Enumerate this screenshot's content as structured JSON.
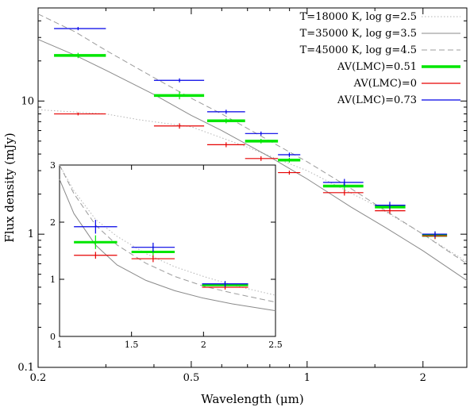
{
  "chart_data": [
    {
      "type": "scatter",
      "title": "",
      "xlabel": "Wavelength (μm)",
      "ylabel": "Flux density (mJy)",
      "x_scale": "log",
      "y_scale": "log",
      "xlim": [
        0.2,
        2.6
      ],
      "ylim": [
        0.1,
        50
      ],
      "x_ticks": [
        {
          "v": 0.2,
          "t": "0.2"
        },
        {
          "v": 0.5,
          "t": "0.5"
        },
        {
          "v": 1,
          "t": "1"
        },
        {
          "v": 2,
          "t": "2"
        }
      ],
      "y_ticks": [
        {
          "v": 0.1,
          "t": "0.1"
        },
        {
          "v": 1,
          "t": "1"
        },
        {
          "v": 10,
          "t": "10"
        }
      ],
      "grid": false,
      "legend_position": "top-right",
      "models": [
        {
          "name": "T=18000 K, log g=2.5",
          "style": "dotted",
          "color": "#b5b5b5",
          "x": [
            0.2,
            0.3,
            0.37,
            0.5,
            0.7,
            1.0,
            1.5,
            2.0,
            2.6
          ],
          "y": [
            8.6,
            8.0,
            7.2,
            6.4,
            4.5,
            3.0,
            1.65,
            1.0,
            0.62
          ]
        },
        {
          "name": "T=35000 K, log g=3.5",
          "style": "solid",
          "color": "#8a8a8a",
          "x": [
            0.2,
            0.25,
            0.3,
            0.4,
            0.5,
            0.6,
            0.8,
            1.0,
            1.3,
            1.6,
            2.0,
            2.6
          ],
          "y": [
            29,
            22,
            17,
            11.2,
            7.8,
            6.0,
            3.8,
            2.6,
            1.6,
            1.12,
            0.75,
            0.45
          ]
        },
        {
          "name": "T=45000 K, log g=4.5",
          "style": "dashed",
          "color": "#9c9c9c",
          "x": [
            0.2,
            0.25,
            0.3,
            0.4,
            0.5,
            0.6,
            0.8,
            1.0,
            1.3,
            1.6,
            2.0,
            2.6
          ],
          "y": [
            45,
            33,
            24,
            15.0,
            10.5,
            8.0,
            5.0,
            3.5,
            2.2,
            1.5,
            1.0,
            0.6
          ]
        }
      ],
      "series": [
        {
          "name": "AV(LMC)=0.51",
          "color": "#00e600",
          "points": [
            {
              "x": 0.254,
              "y": 22.0,
              "xmin": 0.22,
              "xmax": 0.3,
              "ylow": 21.0,
              "yhigh": 23.0
            },
            {
              "x": 0.466,
              "y": 11.0,
              "xmin": 0.4,
              "xmax": 0.54,
              "ylow": 10.3,
              "yhigh": 11.8
            },
            {
              "x": 0.616,
              "y": 7.1,
              "xmin": 0.55,
              "xmax": 0.69,
              "ylow": 6.8,
              "yhigh": 7.4
            },
            {
              "x": 0.759,
              "y": 5.0,
              "xmin": 0.69,
              "xmax": 0.84,
              "ylow": 4.8,
              "yhigh": 5.2
            },
            {
              "x": 0.899,
              "y": 3.6,
              "xmin": 0.84,
              "xmax": 0.96,
              "ylow": 3.45,
              "yhigh": 3.75
            },
            {
              "x": 1.25,
              "y": 2.3,
              "xmin": 1.1,
              "xmax": 1.4,
              "ylow": 2.15,
              "yhigh": 2.45
            },
            {
              "x": 1.64,
              "y": 1.6,
              "xmin": 1.5,
              "xmax": 1.8,
              "ylow": 1.5,
              "yhigh": 1.7
            },
            {
              "x": 2.15,
              "y": 0.98,
              "xmin": 1.99,
              "xmax": 2.31,
              "ylow": 0.92,
              "yhigh": 1.05
            }
          ]
        },
        {
          "name": "AV(LMC)=0",
          "color": "#e60000",
          "points": [
            {
              "x": 0.254,
              "y": 8.0,
              "xmin": 0.22,
              "xmax": 0.3,
              "ylow": 7.8,
              "yhigh": 8.2
            },
            {
              "x": 0.466,
              "y": 6.5,
              "xmin": 0.4,
              "xmax": 0.54,
              "ylow": 6.2,
              "yhigh": 6.8
            },
            {
              "x": 0.616,
              "y": 4.7,
              "xmin": 0.55,
              "xmax": 0.69,
              "ylow": 4.5,
              "yhigh": 4.9
            },
            {
              "x": 0.759,
              "y": 3.7,
              "xmin": 0.69,
              "xmax": 0.84,
              "ylow": 3.55,
              "yhigh": 3.85
            },
            {
              "x": 0.899,
              "y": 2.9,
              "xmin": 0.84,
              "xmax": 0.96,
              "ylow": 2.8,
              "yhigh": 3.0
            },
            {
              "x": 1.25,
              "y": 2.05,
              "xmin": 1.1,
              "xmax": 1.4,
              "ylow": 1.95,
              "yhigh": 2.15
            },
            {
              "x": 1.64,
              "y": 1.5,
              "xmin": 1.5,
              "xmax": 1.8,
              "ylow": 1.42,
              "yhigh": 1.58
            },
            {
              "x": 2.15,
              "y": 0.97,
              "xmin": 1.99,
              "xmax": 2.31,
              "ylow": 0.92,
              "yhigh": 1.02
            }
          ]
        },
        {
          "name": "AV(LMC)=0.73",
          "color": "#0000e6",
          "points": [
            {
              "x": 0.254,
              "y": 35.0,
              "xmin": 0.22,
              "xmax": 0.3,
              "ylow": 34.0,
              "yhigh": 36.0
            },
            {
              "x": 0.466,
              "y": 14.3,
              "xmin": 0.4,
              "xmax": 0.54,
              "ylow": 13.8,
              "yhigh": 14.8
            },
            {
              "x": 0.616,
              "y": 8.3,
              "xmin": 0.55,
              "xmax": 0.69,
              "ylow": 8.0,
              "yhigh": 8.6
            },
            {
              "x": 0.759,
              "y": 5.7,
              "xmin": 0.69,
              "xmax": 0.84,
              "ylow": 5.5,
              "yhigh": 5.9
            },
            {
              "x": 0.899,
              "y": 3.95,
              "xmin": 0.84,
              "xmax": 0.96,
              "ylow": 3.8,
              "yhigh": 4.1
            },
            {
              "x": 1.25,
              "y": 2.45,
              "xmin": 1.1,
              "xmax": 1.4,
              "ylow": 2.3,
              "yhigh": 2.6
            },
            {
              "x": 1.64,
              "y": 1.65,
              "xmin": 1.5,
              "xmax": 1.8,
              "ylow": 1.55,
              "yhigh": 1.75
            },
            {
              "x": 2.15,
              "y": 1.0,
              "xmin": 1.99,
              "xmax": 2.31,
              "ylow": 0.95,
              "yhigh": 1.05
            }
          ]
        }
      ]
    },
    {
      "type": "scatter",
      "title": "",
      "xlabel": "",
      "ylabel": "",
      "x_scale": "linear",
      "y_scale": "linear",
      "xlim": [
        1,
        2.5
      ],
      "ylim": [
        0,
        3
      ],
      "x_ticks": [
        {
          "v": 1,
          "t": "1"
        },
        {
          "v": 1.5,
          "t": "1.5"
        },
        {
          "v": 2,
          "t": "2"
        },
        {
          "v": 2.5,
          "t": "2.5"
        }
      ],
      "y_ticks": [
        {
          "v": 0,
          "t": "0"
        },
        {
          "v": 1,
          "t": "1"
        },
        {
          "v": 2,
          "t": "2"
        },
        {
          "v": 3,
          "t": "3"
        }
      ],
      "grid": false,
      "models": [
        {
          "name": "T=18000 K, log g=2.5",
          "style": "dotted",
          "color": "#b5b5b5",
          "x": [
            1.0,
            1.1,
            1.25,
            1.4,
            1.6,
            1.8,
            2.0,
            2.2,
            2.5
          ],
          "y": [
            3.0,
            2.55,
            2.05,
            1.75,
            1.45,
            1.22,
            1.05,
            0.9,
            0.72
          ]
        },
        {
          "name": "T=35000 K, log g=3.5",
          "style": "solid",
          "color": "#8a8a8a",
          "x": [
            1.0,
            1.1,
            1.25,
            1.4,
            1.6,
            1.8,
            2.0,
            2.2,
            2.5
          ],
          "y": [
            2.75,
            2.15,
            1.6,
            1.25,
            0.98,
            0.8,
            0.67,
            0.57,
            0.45
          ]
        },
        {
          "name": "T=45000 K, log g=4.5",
          "style": "dashed",
          "color": "#9c9c9c",
          "x": [
            1.0,
            1.1,
            1.25,
            1.4,
            1.6,
            1.8,
            2.0,
            2.2,
            2.5
          ],
          "y": [
            3.0,
            2.5,
            1.95,
            1.6,
            1.28,
            1.05,
            0.88,
            0.76,
            0.6
          ]
        }
      ],
      "series": [
        {
          "name": "AV(LMC)=0.51",
          "color": "#00e600",
          "points": [
            {
              "x": 1.25,
              "y": 1.65,
              "xmin": 1.1,
              "xmax": 1.4,
              "ylow": 1.53,
              "yhigh": 1.77
            },
            {
              "x": 1.65,
              "y": 1.48,
              "xmin": 1.5,
              "xmax": 1.8,
              "ylow": 1.38,
              "yhigh": 1.58
            },
            {
              "x": 2.15,
              "y": 0.9,
              "xmin": 1.99,
              "xmax": 2.31,
              "ylow": 0.84,
              "yhigh": 0.96
            }
          ]
        },
        {
          "name": "AV(LMC)=0",
          "color": "#e60000",
          "points": [
            {
              "x": 1.25,
              "y": 1.42,
              "xmin": 1.1,
              "xmax": 1.4,
              "ylow": 1.36,
              "yhigh": 1.48
            },
            {
              "x": 1.65,
              "y": 1.36,
              "xmin": 1.5,
              "xmax": 1.8,
              "ylow": 1.3,
              "yhigh": 1.42
            },
            {
              "x": 2.15,
              "y": 0.86,
              "xmin": 1.99,
              "xmax": 2.31,
              "ylow": 0.82,
              "yhigh": 0.9
            }
          ]
        },
        {
          "name": "AV(LMC)=0.73",
          "color": "#0000e6",
          "points": [
            {
              "x": 1.25,
              "y": 1.92,
              "xmin": 1.1,
              "xmax": 1.4,
              "ylow": 1.8,
              "yhigh": 2.04
            },
            {
              "x": 1.65,
              "y": 1.56,
              "xmin": 1.5,
              "xmax": 1.8,
              "ylow": 1.48,
              "yhigh": 1.64
            },
            {
              "x": 2.15,
              "y": 0.92,
              "xmin": 1.99,
              "xmax": 2.31,
              "ylow": 0.87,
              "yhigh": 0.97
            }
          ]
        }
      ]
    }
  ]
}
